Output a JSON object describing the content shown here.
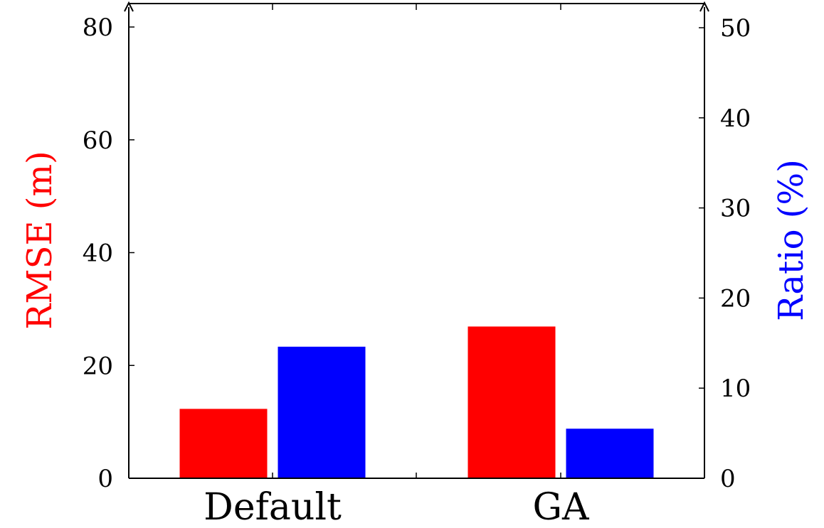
{
  "chart_data": {
    "type": "bar",
    "categories": [
      "Default",
      "GA"
    ],
    "series": [
      {
        "axis": "left",
        "color": "#ff0000",
        "values": [
          12.3,
          26.9
        ]
      },
      {
        "axis": "right",
        "color": "#0000ff",
        "values": [
          14.6,
          5.5
        ]
      }
    ],
    "ylabel": "RMSE (m)",
    "ylabel_color": "#ff0000",
    "ylim": [
      0,
      84
    ],
    "yticks": [
      0,
      20,
      40,
      60,
      80
    ],
    "y2label": "Ratio (%)",
    "y2label_color": "#0000ff",
    "y2lim": [
      0,
      52.5
    ],
    "y2ticks": [
      0,
      10,
      20,
      30,
      40,
      50
    ],
    "grid": false,
    "legend": "none"
  }
}
